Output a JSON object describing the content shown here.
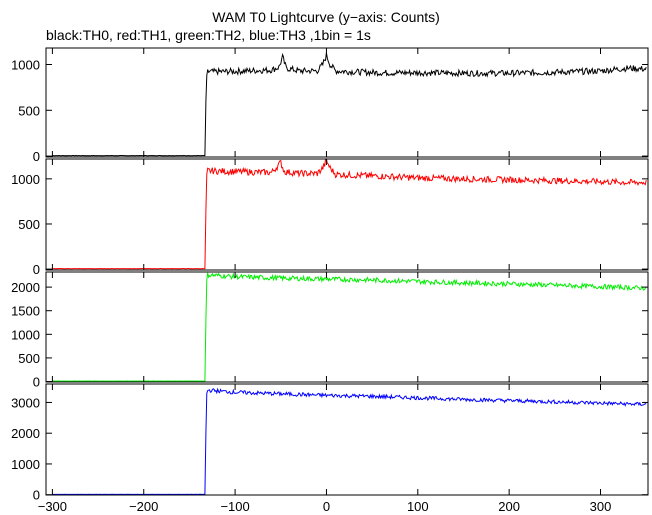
{
  "chart_data": {
    "type": "line",
    "title": "WAM T0 Lightcurve (y−axis: Counts)",
    "subtitle": "black:TH0, red:TH1, green:TH2, blue:TH3 ,1bin = 1s",
    "xlim": [
      -307,
      352
    ],
    "x_ticks": [
      -300,
      -200,
      -100,
      0,
      100,
      200,
      300
    ],
    "x_tick_labels": [
      "−300",
      "−200",
      "−100",
      "0",
      "100",
      "200",
      "300"
    ],
    "panels": [
      {
        "name": "TH0",
        "color": "#000000",
        "ylim": [
          -10,
          1180
        ],
        "y_ticks": [
          0,
          500,
          1000
        ],
        "y_tick_labels": [
          "0",
          "500",
          "1000"
        ],
        "x": [
          -300,
          -133,
          -132,
          -131,
          -130,
          -100,
          -60,
          -52,
          -48,
          -44,
          -30,
          -10,
          -4,
          0,
          4,
          10,
          30,
          60,
          100,
          150,
          200,
          250,
          300,
          330,
          350
        ],
        "y": [
          5,
          5,
          600,
          880,
          920,
          925,
          940,
          970,
          1080,
          960,
          930,
          930,
          1000,
          1100,
          1000,
          930,
          920,
          910,
          910,
          905,
          905,
          915,
          930,
          960,
          950
        ]
      },
      {
        "name": "TH1",
        "color": "#ff0000",
        "ylim": [
          -10,
          1220
        ],
        "y_ticks": [
          0,
          500,
          1000
        ],
        "y_tick_labels": [
          "0",
          "500",
          "1000"
        ],
        "x": [
          -300,
          -133,
          -132,
          -131,
          -130,
          -100,
          -60,
          -50,
          -46,
          -30,
          -10,
          -4,
          0,
          4,
          10,
          30,
          60,
          100,
          150,
          200,
          250,
          300,
          330,
          350
        ],
        "y": [
          5,
          5,
          650,
          1050,
          1090,
          1080,
          1070,
          1180,
          1080,
          1060,
          1060,
          1120,
          1200,
          1120,
          1050,
          1040,
          1030,
          1010,
          1000,
          990,
          980,
          970,
          960,
          960
        ]
      },
      {
        "name": "TH2",
        "color": "#00ee00",
        "ylim": [
          -10,
          2320
        ],
        "y_ticks": [
          0,
          500,
          1000,
          1500,
          2000
        ],
        "y_tick_labels": [
          "0",
          "500",
          "1000",
          "1500",
          "2000"
        ],
        "x": [
          -300,
          -133,
          -132,
          -131,
          -130,
          -100,
          -50,
          0,
          50,
          100,
          150,
          200,
          250,
          300,
          330,
          350
        ],
        "y": [
          10,
          10,
          1300,
          2150,
          2260,
          2220,
          2190,
          2170,
          2150,
          2120,
          2090,
          2070,
          2040,
          2010,
          1990,
          1980
        ]
      },
      {
        "name": "TH3",
        "color": "#0000ff",
        "ylim": [
          -10,
          3600
        ],
        "y_ticks": [
          0,
          1000,
          2000,
          3000
        ],
        "y_tick_labels": [
          "0",
          "1000",
          "2000",
          "3000"
        ],
        "x": [
          -300,
          -133,
          -132,
          -131,
          -130,
          -100,
          -50,
          0,
          50,
          100,
          150,
          200,
          250,
          300,
          330,
          350
        ],
        "y": [
          10,
          10,
          2000,
          3300,
          3400,
          3330,
          3280,
          3230,
          3200,
          3150,
          3100,
          3060,
          3020,
          2980,
          2950,
          2940
        ]
      }
    ]
  }
}
